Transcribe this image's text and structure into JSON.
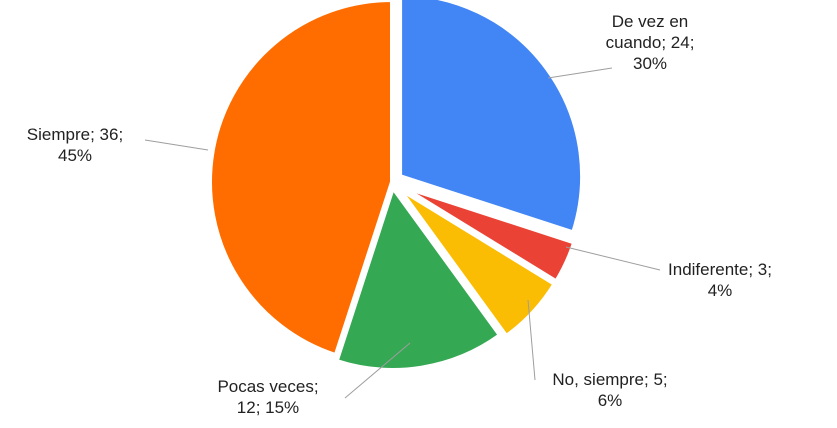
{
  "chart_data": {
    "type": "pie",
    "title": "",
    "legend": "none",
    "slices": [
      {
        "label": "De vez en cuando",
        "value": 24,
        "percent": "30%",
        "color": "#4285f4",
        "label_lines": [
          "De vez en",
          "cuando; 24;",
          "30%"
        ]
      },
      {
        "label": "Indiferente",
        "value": 3,
        "percent": "4%",
        "color": "#ea4335",
        "label_lines": [
          "Indiferente; 3;",
          "4%"
        ]
      },
      {
        "label": "No, siempre",
        "value": 5,
        "percent": "6%",
        "color": "#fbbc04",
        "label_lines": [
          "No, siempre; 5;",
          "6%"
        ]
      },
      {
        "label": "Pocas veces",
        "value": 12,
        "percent": "15%",
        "color": "#34a853",
        "label_lines": [
          "Pocas veces;",
          "12; 15%"
        ]
      },
      {
        "label": "Siempre",
        "value": 36,
        "percent": "45%",
        "color": "#ff6d01",
        "label_lines": [
          "Siempre; 36;",
          "45%"
        ]
      }
    ]
  }
}
